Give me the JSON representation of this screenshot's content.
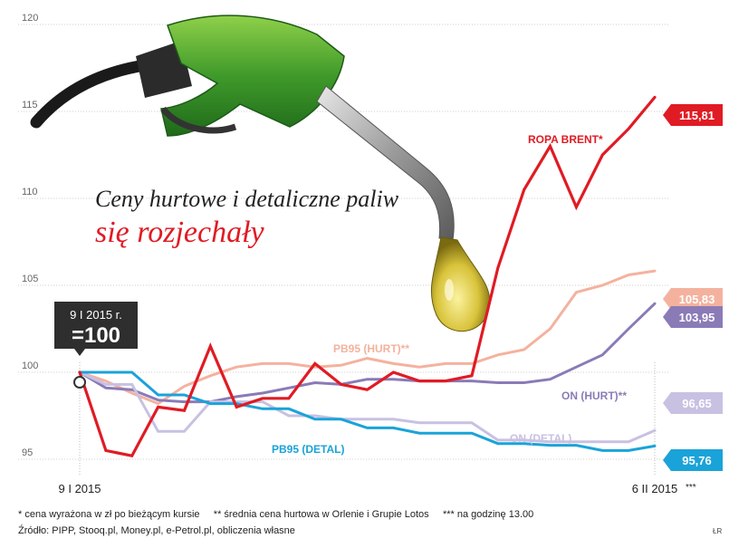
{
  "chart_data": {
    "type": "line",
    "title": "Ceny hurtowe i detaliczne paliw",
    "subtitle": "się rozjechały",
    "yticks": [
      95,
      100,
      105,
      110,
      115,
      120
    ],
    "ylim": [
      95,
      120
    ],
    "xlim": [
      0,
      22
    ],
    "x_start_label": "9 I 2015",
    "x_end_label": "6 II 2015",
    "x_end_note": "***",
    "baseline_callout": {
      "date": "9 I 2015 r.",
      "value": "=100"
    },
    "grid": true,
    "series": [
      {
        "name": "ROPA BRENT*",
        "color": "#e01b24",
        "end_label": "115,81",
        "x": [
          0,
          1,
          2,
          3,
          4,
          5,
          6,
          7,
          8,
          9,
          10,
          11,
          12,
          13,
          14,
          15,
          16,
          17,
          18,
          19,
          20,
          21,
          22
        ],
        "values": [
          100,
          95.5,
          95.2,
          98,
          97.8,
          101.5,
          98,
          98.5,
          98.5,
          100.5,
          99.3,
          99,
          100,
          99.5,
          99.5,
          99.8,
          106,
          110.5,
          113,
          109.5,
          112.5,
          114,
          115.81
        ]
      },
      {
        "name": "PB95 (HURT)**",
        "color": "#f4b29e",
        "end_label": "105,83",
        "x": [
          0,
          1,
          2,
          3,
          4,
          5,
          6,
          7,
          8,
          9,
          10,
          11,
          12,
          13,
          14,
          15,
          16,
          17,
          18,
          19,
          20,
          21,
          22
        ],
        "values": [
          100,
          99.5,
          98.8,
          98.2,
          99.2,
          99.8,
          100.3,
          100.5,
          100.5,
          100.3,
          100.4,
          100.8,
          100.5,
          100.3,
          100.5,
          100.5,
          101,
          101.3,
          102.5,
          104.6,
          105,
          105.6,
          105.83
        ]
      },
      {
        "name": "ON (HURT)**",
        "color": "#8a7bb7",
        "end_label": "103,95",
        "x": [
          0,
          1,
          2,
          3,
          4,
          5,
          6,
          7,
          8,
          9,
          10,
          11,
          12,
          13,
          14,
          15,
          16,
          17,
          18,
          19,
          20,
          21,
          22
        ],
        "values": [
          100,
          99.1,
          99,
          98.4,
          98.3,
          98.3,
          98.6,
          98.8,
          99.1,
          99.4,
          99.3,
          99.6,
          99.6,
          99.5,
          99.5,
          99.5,
          99.4,
          99.4,
          99.6,
          100.3,
          101,
          102.5,
          103.95
        ]
      },
      {
        "name": "ON (DETAL)",
        "color": "#c8c1e2",
        "end_label": "96,65",
        "x": [
          0,
          1,
          2,
          3,
          4,
          5,
          6,
          7,
          8,
          9,
          10,
          11,
          12,
          13,
          14,
          15,
          16,
          17,
          18,
          19,
          20,
          21,
          22
        ],
        "values": [
          100,
          99.3,
          99.3,
          96.6,
          96.6,
          98.3,
          98.3,
          98.3,
          97.5,
          97.5,
          97.3,
          97.3,
          97.3,
          97.1,
          97.1,
          97.1,
          96.1,
          96.1,
          96,
          96,
          96,
          96,
          96.65
        ]
      },
      {
        "name": "PB95 (DETAL)",
        "color": "#1aa3d9",
        "end_label": "95,76",
        "x": [
          0,
          1,
          2,
          3,
          4,
          5,
          6,
          7,
          8,
          9,
          10,
          11,
          12,
          13,
          14,
          15,
          16,
          17,
          18,
          19,
          20,
          21,
          22
        ],
        "values": [
          100,
          100,
          100,
          98.7,
          98.7,
          98.2,
          98.2,
          97.9,
          97.9,
          97.3,
          97.3,
          96.8,
          96.8,
          96.5,
          96.5,
          96.5,
          95.9,
          95.9,
          95.8,
          95.8,
          95.5,
          95.5,
          95.76
        ]
      }
    ]
  },
  "footnotes": {
    "line1": "* cena wyrażona w zł po bieżącym kursie     ** średnia cena hurtowa w Orlenie i Grupie Lotos     *** na godzinę 13.00",
    "line2": "Źródło: PIPP, Stooq.pl, Money.pl, e-Petrol.pl, obliczenia własne",
    "credit": "ŁR"
  }
}
